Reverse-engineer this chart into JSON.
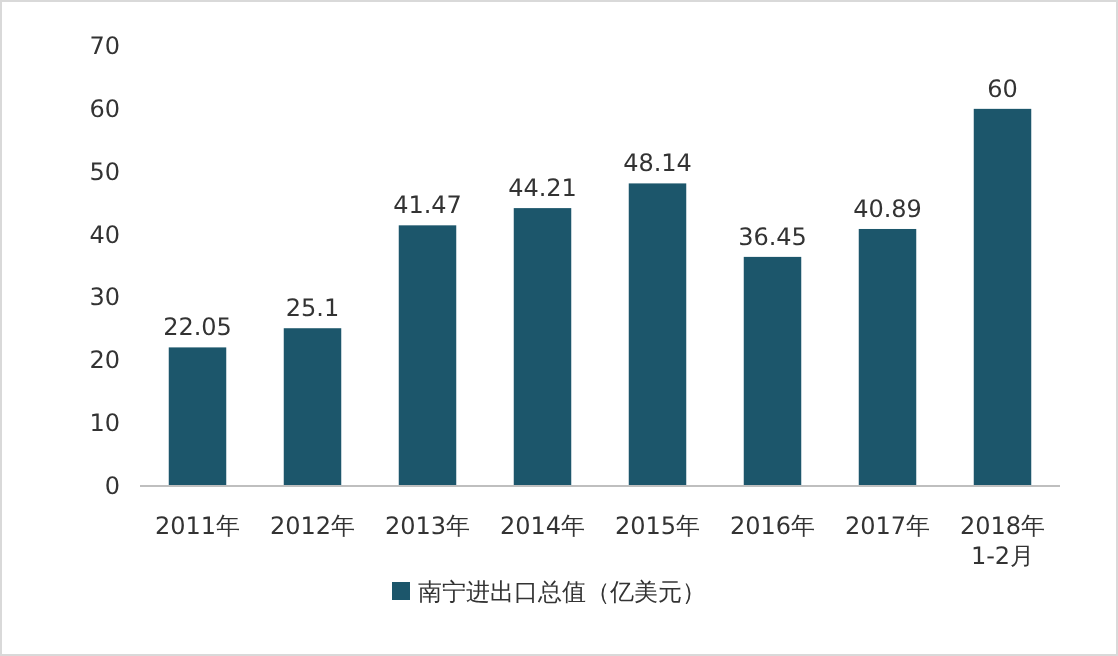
{
  "chart_data": {
    "type": "bar",
    "categories": [
      "2011年",
      "2012年",
      "2013年",
      "2014年",
      "2015年",
      "2016年",
      "2017年",
      "2018年\n1-2月"
    ],
    "series": [
      {
        "name": "南宁进出口总值（亿美元）",
        "color": "#1c566b",
        "values": [
          22.05,
          25.1,
          41.47,
          44.21,
          48.14,
          36.45,
          40.89,
          60
        ]
      }
    ],
    "ylim": [
      0,
      70
    ],
    "yticks": [
      0,
      10,
      20,
      30,
      40,
      50,
      60,
      70
    ],
    "data_labels": true,
    "legend": "bottom",
    "grid": false
  }
}
